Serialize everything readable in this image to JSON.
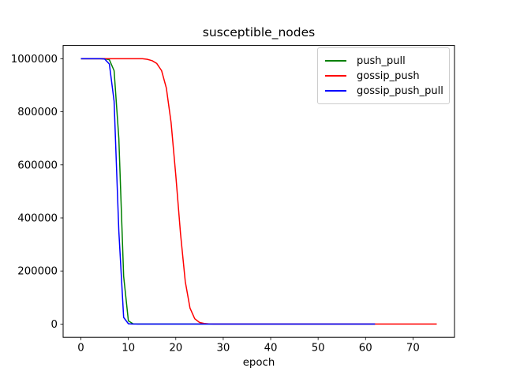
{
  "chart_data": {
    "type": "line",
    "title": "susceptible_nodes",
    "xlabel": "epoch",
    "ylabel": "",
    "grid": false,
    "legend_position": "upper-right",
    "xlim": [
      -3.75,
      78.75
    ],
    "ylim": [
      -50000,
      1050000
    ],
    "x_ticks": [
      0,
      10,
      20,
      30,
      40,
      50,
      60,
      70
    ],
    "x_tick_labels": [
      "0",
      "10",
      "20",
      "30",
      "40",
      "50",
      "60",
      "70"
    ],
    "y_ticks": [
      0,
      200000,
      400000,
      600000,
      800000,
      1000000
    ],
    "y_tick_labels": [
      "0",
      "200000",
      "400000",
      "600000",
      "800000",
      "1000000"
    ],
    "series": [
      {
        "name": "push_pull",
        "color": "#008000",
        "x_start": 0,
        "x_step": 1,
        "values": [
          1000000,
          1000000,
          1000000,
          1000000,
          1000000,
          1000000,
          996000,
          955000,
          700000,
          180000,
          12000,
          800,
          0,
          0,
          0,
          0,
          0,
          0,
          0,
          0,
          0,
          0,
          0,
          0,
          0,
          0,
          0,
          0,
          0,
          0,
          0,
          0,
          0,
          0,
          0,
          0,
          0,
          0,
          0,
          0,
          0,
          0,
          0,
          0,
          0,
          0,
          0,
          0,
          0,
          0,
          0,
          0,
          0,
          0,
          0,
          0,
          0,
          0,
          0,
          0,
          0,
          0,
          0
        ]
      },
      {
        "name": "gossip_push",
        "color": "#ff0000",
        "x_start": 0,
        "x_step": 1,
        "values": [
          1000000,
          1000000,
          1000000,
          1000000,
          1000000,
          1000000,
          1000000,
          1000000,
          1000000,
          1000000,
          1000000,
          1000000,
          1000000,
          1000000,
          998000,
          993000,
          982000,
          955000,
          890000,
          760000,
          560000,
          340000,
          160000,
          60000,
          20000,
          6000,
          2000,
          500,
          0,
          0,
          0,
          0,
          0,
          0,
          0,
          0,
          0,
          0,
          0,
          0,
          0,
          0,
          0,
          0,
          0,
          0,
          0,
          0,
          0,
          0,
          0,
          0,
          0,
          0,
          0,
          0,
          0,
          0,
          0,
          0,
          0,
          0,
          0,
          0,
          0,
          0,
          0,
          0,
          0,
          0,
          0,
          0,
          0,
          0,
          0,
          0
        ]
      },
      {
        "name": "gossip_push_pull",
        "color": "#0000ff",
        "x_start": 0,
        "x_step": 1,
        "values": [
          1000000,
          1000000,
          1000000,
          1000000,
          1000000,
          999000,
          980000,
          840000,
          350000,
          25000,
          1200,
          0,
          0,
          0,
          0,
          0,
          0,
          0,
          0,
          0,
          0,
          0,
          0,
          0,
          0,
          0,
          0,
          0,
          0,
          0,
          0,
          0,
          0,
          0,
          0,
          0,
          0,
          0,
          0,
          0,
          0,
          0,
          0,
          0,
          0,
          0,
          0,
          0,
          0,
          0,
          0,
          0,
          0,
          0,
          0,
          0,
          0,
          0,
          0,
          0,
          0,
          0,
          0
        ]
      }
    ]
  }
}
